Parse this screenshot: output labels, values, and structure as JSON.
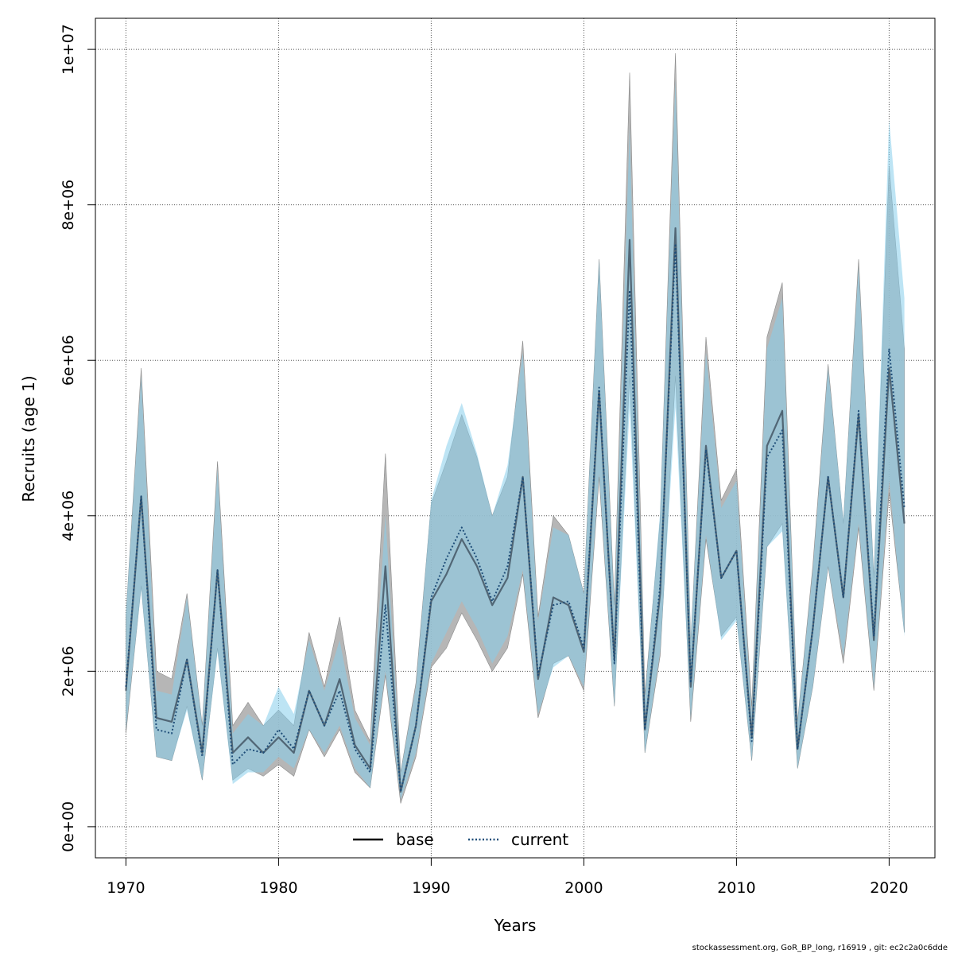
{
  "chart_data": {
    "type": "line",
    "xlabel": "Years",
    "ylabel": "Recruits (age 1)",
    "xlim": [
      1968,
      2023
    ],
    "ylim": [
      -400000,
      10400000
    ],
    "xticks": [
      1970,
      1980,
      1990,
      2000,
      2010,
      2020
    ],
    "xtick_labels": [
      "1970",
      "1980",
      "1990",
      "2000",
      "2010",
      "2020"
    ],
    "yticks": [
      0,
      2000000,
      4000000,
      6000000,
      8000000,
      10000000
    ],
    "ytick_labels": [
      "0e+00",
      "2e+06",
      "4e+06",
      "6e+06",
      "8e+06",
      "1e+07"
    ],
    "grid": true,
    "legend_position": "bottom-center",
    "x": [
      1970,
      1971,
      1972,
      1973,
      1974,
      1975,
      1976,
      1977,
      1978,
      1979,
      1980,
      1981,
      1982,
      1983,
      1984,
      1985,
      1986,
      1987,
      1988,
      1989,
      1990,
      1991,
      1992,
      1993,
      1994,
      1995,
      1996,
      1997,
      1998,
      1999,
      2000,
      2001,
      2002,
      2003,
      2004,
      2005,
      2006,
      2007,
      2008,
      2009,
      2010,
      2011,
      2012,
      2013,
      2014,
      2015,
      2016,
      2017,
      2018,
      2019,
      2020,
      2021
    ],
    "series": [
      {
        "name": "base",
        "line_style": "solid",
        "color": "#000000",
        "band_color": "#a9a9a9",
        "values": [
          1750000,
          4250000,
          1400000,
          1350000,
          2150000,
          950000,
          3300000,
          950000,
          1150000,
          950000,
          1150000,
          950000,
          1750000,
          1300000,
          1900000,
          1050000,
          750000,
          3350000,
          450000,
          1300000,
          2900000,
          3250000,
          3700000,
          3350000,
          2850000,
          3200000,
          4500000,
          1900000,
          2950000,
          2850000,
          2250000,
          5600000,
          2150000,
          7550000,
          1250000,
          3000000,
          7700000,
          1800000,
          4900000,
          3200000,
          3550000,
          1150000,
          4900000,
          5350000,
          1000000,
          2550000,
          4500000,
          2950000,
          5300000,
          2400000,
          5900000,
          3900000
        ],
        "lower": [
          1200000,
          3100000,
          900000,
          850000,
          1550000,
          600000,
          2300000,
          600000,
          750000,
          650000,
          800000,
          650000,
          1250000,
          900000,
          1250000,
          700000,
          500000,
          1950000,
          300000,
          900000,
          2050000,
          2300000,
          2750000,
          2400000,
          2000000,
          2300000,
          3250000,
          1400000,
          2100000,
          2200000,
          1750000,
          4500000,
          1550000,
          5800000,
          950000,
          2200000,
          5800000,
          1350000,
          3700000,
          2450000,
          2700000,
          850000,
          3600000,
          3900000,
          750000,
          1800000,
          3350000,
          2100000,
          3850000,
          1750000,
          4300000,
          2500000
        ],
        "upper": [
          2700000,
          5900000,
          2000000,
          1900000,
          3000000,
          1300000,
          4700000,
          1300000,
          1600000,
          1300000,
          1500000,
          1300000,
          2500000,
          1800000,
          2700000,
          1500000,
          1100000,
          4800000,
          700000,
          1850000,
          4150000,
          4700000,
          5300000,
          4750000,
          4000000,
          4500000,
          6250000,
          2700000,
          4000000,
          3750000,
          3000000,
          7300000,
          2850000,
          9700000,
          1700000,
          3950000,
          9950000,
          2350000,
          6300000,
          4200000,
          4600000,
          1550000,
          6300000,
          7000000,
          1350000,
          3350000,
          5950000,
          3900000,
          7300000,
          3200000,
          8500000,
          6150000
        ]
      },
      {
        "name": "current",
        "line_style": "dotted",
        "color": "#1f4e79",
        "band_color": "#87ceeb",
        "values": [
          1800000,
          4250000,
          1250000,
          1200000,
          2150000,
          900000,
          3300000,
          800000,
          1000000,
          950000,
          1250000,
          1000000,
          1750000,
          1300000,
          1750000,
          1000000,
          700000,
          2850000,
          450000,
          1300000,
          2950000,
          3450000,
          3850000,
          3450000,
          2900000,
          3350000,
          4500000,
          1950000,
          2850000,
          2900000,
          2300000,
          5650000,
          2100000,
          6900000,
          1250000,
          3100000,
          7500000,
          1850000,
          4850000,
          3200000,
          3550000,
          1100000,
          4750000,
          5100000,
          1000000,
          2550000,
          4500000,
          2950000,
          5350000,
          2450000,
          6150000,
          4100000
        ],
        "lower": [
          1250000,
          3050000,
          900000,
          850000,
          1500000,
          600000,
          2250000,
          550000,
          700000,
          700000,
          900000,
          750000,
          1250000,
          950000,
          1300000,
          750000,
          500000,
          2000000,
          350000,
          950000,
          2100000,
          2500000,
          2900000,
          2550000,
          2100000,
          2450000,
          3300000,
          1450000,
          2050000,
          2200000,
          1800000,
          4550000,
          1550000,
          5400000,
          950000,
          2250000,
          5400000,
          1400000,
          3750000,
          2400000,
          2650000,
          850000,
          3600000,
          3800000,
          750000,
          1800000,
          3350000,
          2200000,
          3900000,
          1800000,
          4450000,
          2450000
        ],
        "upper": [
          2750000,
          5800000,
          1750000,
          1700000,
          2950000,
          1300000,
          4600000,
          1200000,
          1450000,
          1300000,
          1800000,
          1450000,
          2400000,
          1750000,
          2400000,
          1400000,
          1050000,
          4000000,
          700000,
          1800000,
          4200000,
          4900000,
          5450000,
          4800000,
          4000000,
          4650000,
          6100000,
          2650000,
          3850000,
          3750000,
          3000000,
          7300000,
          2800000,
          9000000,
          1650000,
          4050000,
          9600000,
          2400000,
          6100000,
          4100000,
          4450000,
          1450000,
          6150000,
          6800000,
          1350000,
          3300000,
          5900000,
          3950000,
          7200000,
          3250000,
          9100000,
          6800000
        ]
      }
    ]
  },
  "footer": "stockassessment.org, GoR_BP_long, r16919 , git: ec2c2a0c6dde"
}
